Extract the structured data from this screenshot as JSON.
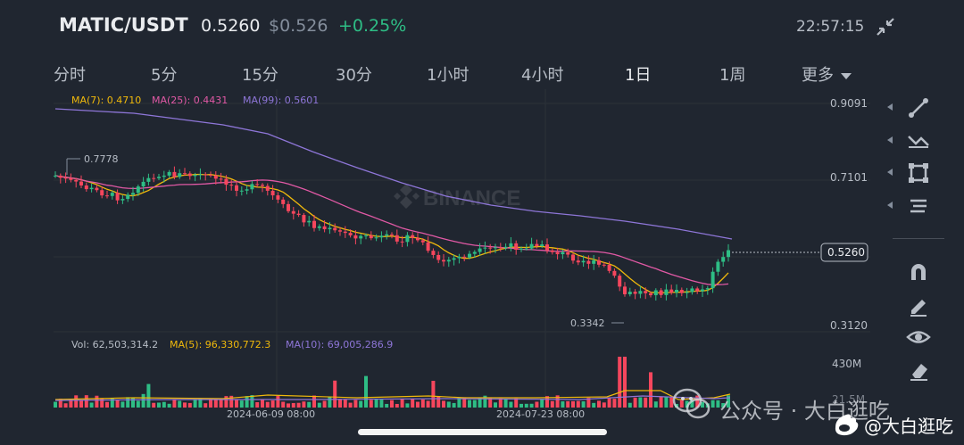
{
  "header": {
    "pair": "MATIC/USDT",
    "price": "0.5260",
    "usd_price": "$0.526",
    "change": "+0.25%",
    "clock": "22:57:15",
    "collapse_icon": "collapse-arrows-icon"
  },
  "tabs": [
    {
      "label": "分时",
      "active": false
    },
    {
      "label": "5分",
      "active": false
    },
    {
      "label": "15分",
      "active": false
    },
    {
      "label": "30分",
      "active": false
    },
    {
      "label": "1小时",
      "active": false
    },
    {
      "label": "4小时",
      "active": false
    },
    {
      "label": "1日",
      "active": true
    },
    {
      "label": "1周",
      "active": false
    },
    {
      "label": "更多",
      "active": false
    }
  ],
  "ma_legend": {
    "ma7": "MA(7): 0.4710",
    "ma25": "MA(25): 0.4431",
    "ma99": "MA(99): 0.5601"
  },
  "price_axis": {
    "top": "0.9091",
    "mid": "0.7101",
    "bottom": "0.3120"
  },
  "current_price_tag": "0.5260",
  "high_marker": "0.7778",
  "low_marker": "0.3342",
  "watermark": "BINANCE",
  "volume_legend": {
    "vol": "Vol: 62,503,314.2",
    "ma5": "MA(5): 96,330,772.3",
    "ma10": "MA(10): 69,005,286.9"
  },
  "volume_axis": {
    "top": "430M",
    "bottom": "21.5M"
  },
  "dates": [
    "2024-06-09 08:00",
    "2024-07-23 08:00"
  ],
  "colors": {
    "up": "#2ebd85",
    "down": "#f6465d",
    "ma7": "#f0b90b",
    "ma25": "#e159a5",
    "ma99": "#8e76d8",
    "bg": "#202630"
  },
  "toolbar": [
    "line-draw-icon",
    "trend-tool-icon",
    "shape-tool-icon",
    "fib-tool-icon",
    "magnet-icon",
    "pencil-icon",
    "eye-icon",
    "eraser-icon"
  ],
  "overlay": {
    "wechat_label": "公众号 · 大白逛吃",
    "weibo_label": "@大白逛吃"
  }
}
